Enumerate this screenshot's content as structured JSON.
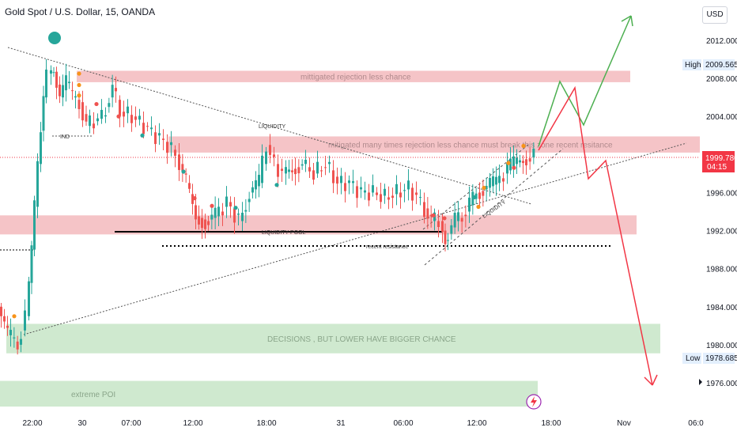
{
  "header": {
    "title": "Gold Spot / U.S. Dollar, 15, OANDA",
    "currency": "USD"
  },
  "chart_data": {
    "type": "line",
    "symbol": "XAUUSD",
    "timeframe": "15",
    "ylim": [
      1974.5,
      2015.0
    ],
    "y_ticks": [
      "2012.000",
      "2008.000",
      "2004.000",
      "1996.000",
      "1992.000",
      "1988.000",
      "1984.000",
      "1980.000",
      "1976.000"
    ],
    "x_ticks": [
      "22:00",
      "30",
      "07:00",
      "12:00",
      "18:00",
      "31",
      "06:00",
      "12:00",
      "18:00",
      "Nov",
      "06:0"
    ],
    "high": {
      "label": "High",
      "value": "2009.565"
    },
    "low": {
      "label": "Low",
      "value": "1978.685"
    },
    "current": {
      "value": "1999.780",
      "countdown": "04:15"
    },
    "zones": [
      {
        "name": "mittigated-rejection-zone",
        "label": "mittigated rejection less chance",
        "y_top": 2008.8,
        "y_bottom": 2007.6,
        "color": "#f5c4c7"
      },
      {
        "name": "mitigated-many-times-zone",
        "label": "mitigated many times rejection less chance must break this zone recent resitance",
        "y_top": 2001.9,
        "y_bottom": 2000.2,
        "color": "#f5c4c7"
      },
      {
        "name": "liquidity-pool-zone",
        "label": "",
        "y_top": 1993.6,
        "y_bottom": 1991.6,
        "color": "#f5c4c7"
      },
      {
        "name": "decisions-zone",
        "label": "DECISIONS , BUT LOWER HAVE BIGGER CHANCE",
        "y_top": 1982.2,
        "y_bottom": 1979.1,
        "color": "#cfe9cf"
      },
      {
        "name": "extreme-poi-zone",
        "label": "extreme POI",
        "y_top": 1976.2,
        "y_bottom": 1973.5,
        "color": "#cfe9cf"
      }
    ],
    "annotations": {
      "liquidity_pool": "LIQUIDITY POOL",
      "recent_resistance": "recent resistance",
      "liquidity_top": "LIQUIDITY",
      "liquidity_channel": "LIQUIDITY",
      "ind": "IND"
    },
    "colors": {
      "up": "#26a69a",
      "down": "#ef5350",
      "bull_path": "#4caf50",
      "bear_path": "#f23645",
      "dot_orange": "#f7931a"
    }
  }
}
